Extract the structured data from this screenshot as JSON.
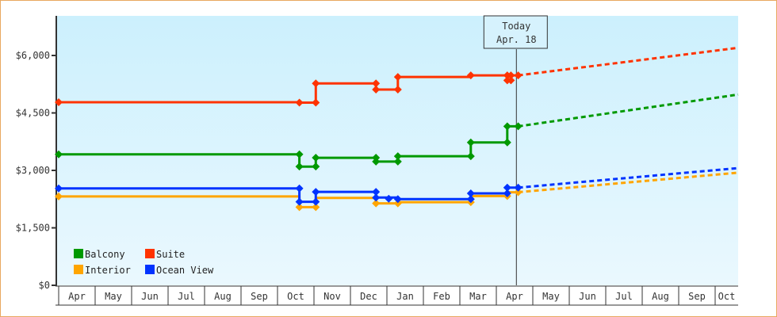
{
  "chart_data": {
    "type": "line",
    "title": "",
    "xlabel": "",
    "ylabel": "",
    "ylim": [
      0,
      7000
    ],
    "yticks": [
      {
        "value": 0,
        "label": "$0"
      },
      {
        "value": 1500,
        "label": "$1,500"
      },
      {
        "value": 3000,
        "label": "$3,000"
      },
      {
        "value": 4500,
        "label": "$4,500"
      },
      {
        "value": 6000,
        "label": "$6,000"
      }
    ],
    "x_categories": [
      "Apr",
      "May",
      "Jun",
      "Jul",
      "Aug",
      "Sep",
      "Oct",
      "Nov",
      "Dec",
      "Jan",
      "Feb",
      "Mar",
      "Apr",
      "May",
      "Jun",
      "Jul",
      "Aug",
      "Sep",
      "Oct"
    ],
    "today_marker": {
      "line1": "Today",
      "line2": "Apr. 18",
      "month_index": 12.55
    },
    "legend": [
      {
        "name": "Balcony",
        "color": "#009900"
      },
      {
        "name": "Suite",
        "color": "#ff3300"
      },
      {
        "name": "Interior",
        "color": "#ffa500"
      },
      {
        "name": "Ocean View",
        "color": "#0033ff"
      }
    ],
    "series": [
      {
        "name": "Suite",
        "color": "#ff3300",
        "history": [
          [
            0,
            4780
          ],
          [
            6.6,
            4780
          ],
          [
            6.6,
            4770
          ],
          [
            7.05,
            4770
          ],
          [
            7.05,
            5270
          ],
          [
            8.7,
            5270
          ],
          [
            8.7,
            5110
          ],
          [
            9.3,
            5110
          ],
          [
            9.3,
            5440
          ],
          [
            11.3,
            5440
          ],
          [
            11.3,
            5480
          ],
          [
            12.3,
            5480
          ],
          [
            12.3,
            5350
          ],
          [
            12.4,
            5350
          ],
          [
            12.4,
            5480
          ],
          [
            12.6,
            5480
          ]
        ],
        "markers": [
          [
            0,
            4780
          ],
          [
            6.6,
            4770
          ],
          [
            7.05,
            4770
          ],
          [
            7.05,
            5270
          ],
          [
            8.7,
            5270
          ],
          [
            8.7,
            5110
          ],
          [
            9.3,
            5110
          ],
          [
            9.3,
            5440
          ],
          [
            11.3,
            5480
          ],
          [
            12.3,
            5480
          ],
          [
            12.3,
            5350
          ],
          [
            12.4,
            5350
          ],
          [
            12.4,
            5480
          ],
          [
            12.6,
            5480
          ]
        ],
        "forecast": [
          [
            12.6,
            5480
          ],
          [
            18.8,
            6200
          ]
        ]
      },
      {
        "name": "Balcony",
        "color": "#009900",
        "history": [
          [
            0,
            3420
          ],
          [
            6.6,
            3420
          ],
          [
            6.6,
            3100
          ],
          [
            7.05,
            3100
          ],
          [
            7.05,
            3330
          ],
          [
            8.7,
            3330
          ],
          [
            8.7,
            3230
          ],
          [
            9.3,
            3230
          ],
          [
            9.3,
            3370
          ],
          [
            11.3,
            3370
          ],
          [
            11.3,
            3730
          ],
          [
            12.3,
            3730
          ],
          [
            12.3,
            4150
          ],
          [
            12.6,
            4150
          ]
        ],
        "markers": [
          [
            0,
            3420
          ],
          [
            6.6,
            3420
          ],
          [
            6.6,
            3100
          ],
          [
            7.05,
            3100
          ],
          [
            7.05,
            3330
          ],
          [
            8.7,
            3330
          ],
          [
            8.7,
            3230
          ],
          [
            9.3,
            3230
          ],
          [
            9.3,
            3370
          ],
          [
            11.3,
            3370
          ],
          [
            11.3,
            3730
          ],
          [
            12.3,
            3730
          ],
          [
            12.3,
            4150
          ],
          [
            12.6,
            4150
          ]
        ],
        "forecast": [
          [
            12.6,
            4150
          ],
          [
            18.8,
            4980
          ]
        ]
      },
      {
        "name": "Ocean View",
        "color": "#0033ff",
        "history": [
          [
            0,
            2530
          ],
          [
            6.6,
            2530
          ],
          [
            6.6,
            2180
          ],
          [
            7.05,
            2180
          ],
          [
            7.05,
            2440
          ],
          [
            8.7,
            2440
          ],
          [
            8.7,
            2290
          ],
          [
            9.3,
            2290
          ],
          [
            9.3,
            2250
          ],
          [
            11.3,
            2250
          ],
          [
            11.3,
            2400
          ],
          [
            12.3,
            2400
          ],
          [
            12.3,
            2550
          ],
          [
            12.6,
            2550
          ]
        ],
        "markers": [
          [
            0,
            2530
          ],
          [
            6.6,
            2530
          ],
          [
            6.6,
            2180
          ],
          [
            7.05,
            2180
          ],
          [
            7.05,
            2440
          ],
          [
            8.7,
            2440
          ],
          [
            8.7,
            2290
          ],
          [
            9.05,
            2260
          ],
          [
            9.3,
            2250
          ],
          [
            11.3,
            2250
          ],
          [
            11.3,
            2400
          ],
          [
            12.3,
            2400
          ],
          [
            12.3,
            2550
          ],
          [
            12.6,
            2550
          ]
        ],
        "forecast": [
          [
            12.6,
            2550
          ],
          [
            18.8,
            3060
          ]
        ]
      },
      {
        "name": "Interior",
        "color": "#ffa500",
        "history": [
          [
            0,
            2320
          ],
          [
            6.6,
            2320
          ],
          [
            6.6,
            2040
          ],
          [
            7.05,
            2040
          ],
          [
            7.05,
            2280
          ],
          [
            8.7,
            2280
          ],
          [
            8.7,
            2140
          ],
          [
            9.3,
            2140
          ],
          [
            9.3,
            2170
          ],
          [
            11.3,
            2170
          ],
          [
            11.3,
            2330
          ],
          [
            12.3,
            2330
          ],
          [
            12.3,
            2430
          ],
          [
            12.6,
            2430
          ]
        ],
        "markers": [
          [
            0,
            2320
          ],
          [
            6.6,
            2040
          ],
          [
            7.05,
            2040
          ],
          [
            8.7,
            2140
          ],
          [
            9.3,
            2140
          ],
          [
            11.3,
            2170
          ],
          [
            12.3,
            2330
          ],
          [
            12.6,
            2430
          ]
        ],
        "forecast": [
          [
            12.6,
            2430
          ],
          [
            18.8,
            2940
          ]
        ]
      }
    ]
  }
}
